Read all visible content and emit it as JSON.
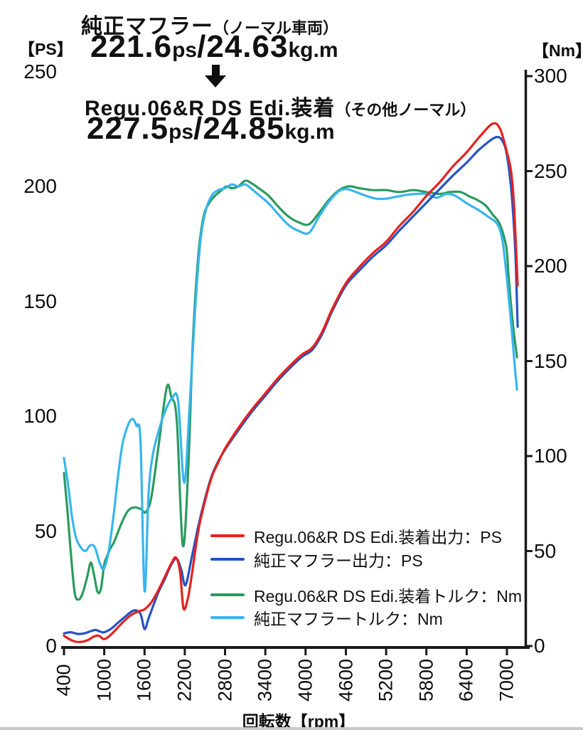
{
  "header": {
    "before": {
      "name": "純正マフラー",
      "qualifier": "（ノーマル車両）",
      "num1": "221.6",
      "unit1": "ps",
      "sep": "/",
      "num2": "24.63",
      "unit2": "kg.m"
    },
    "arrow_icon": "down-arrow",
    "after": {
      "name": "Regu.06&R DS Edi.装着",
      "qualifier": "（その他ノーマル）",
      "num1": "227.5",
      "unit1": "ps",
      "sep": "/",
      "num2": "24.85",
      "unit2": "kg.m"
    }
  },
  "chart_data": {
    "type": "line",
    "x_axis": {
      "label": "回転数【rpm】",
      "ticks": [
        400,
        1000,
        1600,
        2200,
        2800,
        3400,
        4000,
        4600,
        5200,
        5800,
        6400,
        7000
      ],
      "range": [
        400,
        7300
      ]
    },
    "y_left": {
      "label": "【PS】",
      "ticks": [
        0,
        50,
        100,
        150,
        200,
        250
      ],
      "range": [
        0,
        250
      ]
    },
    "y_right": {
      "label": "【Nm】",
      "ticks": [
        0,
        50,
        100,
        150,
        200,
        250,
        300
      ],
      "range": [
        0,
        300
      ]
    },
    "grid": false,
    "legend_position": "inside-bottom-right",
    "series": [
      {
        "name": "Regu.06&R DS Edi.装着出力：PS",
        "color": "#e8211d",
        "axis": "left",
        "peak": "227.5ps",
        "points": [
          [
            400,
            4.5
          ],
          [
            480,
            3
          ],
          [
            560,
            2
          ],
          [
            650,
            1.8
          ],
          [
            750,
            2.5
          ],
          [
            850,
            4.2
          ],
          [
            920,
            4.5
          ],
          [
            1000,
            3
          ],
          [
            1100,
            5
          ],
          [
            1200,
            8
          ],
          [
            1300,
            11
          ],
          [
            1400,
            13.5
          ],
          [
            1500,
            15
          ],
          [
            1600,
            16
          ],
          [
            1700,
            19
          ],
          [
            1800,
            24
          ],
          [
            1900,
            30
          ],
          [
            2000,
            36
          ],
          [
            2070,
            38.5
          ],
          [
            2130,
            32
          ],
          [
            2180,
            16.5
          ],
          [
            2240,
            20
          ],
          [
            2300,
            30
          ],
          [
            2400,
            50
          ],
          [
            2500,
            63
          ],
          [
            2600,
            73.5
          ],
          [
            2700,
            80
          ],
          [
            2800,
            86
          ],
          [
            3000,
            95
          ],
          [
            3200,
            103
          ],
          [
            3400,
            110
          ],
          [
            3600,
            117
          ],
          [
            3800,
            123
          ],
          [
            3950,
            127
          ],
          [
            4100,
            130
          ],
          [
            4250,
            137
          ],
          [
            4400,
            147
          ],
          [
            4600,
            158
          ],
          [
            4800,
            165
          ],
          [
            5000,
            171
          ],
          [
            5200,
            176
          ],
          [
            5400,
            183
          ],
          [
            5600,
            189
          ],
          [
            5800,
            196
          ],
          [
            6000,
            202
          ],
          [
            6200,
            209
          ],
          [
            6400,
            215
          ],
          [
            6600,
            222
          ],
          [
            6790,
            227.5
          ],
          [
            6900,
            225
          ],
          [
            7000,
            215
          ],
          [
            7060,
            207
          ],
          [
            7100,
            195
          ],
          [
            7130,
            177
          ],
          [
            7160,
            157
          ]
        ]
      },
      {
        "name": "純正マフラー出力：PS",
        "color": "#2553c4",
        "axis": "left",
        "peak": "221.6ps",
        "points": [
          [
            400,
            5.5
          ],
          [
            500,
            6
          ],
          [
            600,
            5.3
          ],
          [
            700,
            5.5
          ],
          [
            800,
            6.5
          ],
          [
            870,
            7
          ],
          [
            950,
            6.2
          ],
          [
            1000,
            6
          ],
          [
            1100,
            7.5
          ],
          [
            1200,
            10
          ],
          [
            1300,
            12.5
          ],
          [
            1440,
            15.5
          ],
          [
            1540,
            14
          ],
          [
            1600,
            7.4
          ],
          [
            1660,
            12
          ],
          [
            1730,
            17.5
          ],
          [
            1800,
            23
          ],
          [
            1900,
            29
          ],
          [
            2000,
            35.5
          ],
          [
            2080,
            38
          ],
          [
            2150,
            33
          ],
          [
            2210,
            26.5
          ],
          [
            2300,
            38
          ],
          [
            2400,
            52
          ],
          [
            2500,
            64
          ],
          [
            2600,
            74
          ],
          [
            2700,
            80.5
          ],
          [
            2800,
            85.5
          ],
          [
            3000,
            94
          ],
          [
            3200,
            102
          ],
          [
            3400,
            109
          ],
          [
            3600,
            116
          ],
          [
            3800,
            122
          ],
          [
            3950,
            126
          ],
          [
            4100,
            129
          ],
          [
            4250,
            136
          ],
          [
            4400,
            146
          ],
          [
            4600,
            157
          ],
          [
            4800,
            163.5
          ],
          [
            5000,
            169.5
          ],
          [
            5200,
            174.5
          ],
          [
            5400,
            181
          ],
          [
            5600,
            187
          ],
          [
            5800,
            193
          ],
          [
            6000,
            199
          ],
          [
            6200,
            205
          ],
          [
            6400,
            210.5
          ],
          [
            6600,
            216.5
          ],
          [
            6840,
            221.6
          ],
          [
            6950,
            219
          ],
          [
            7010,
            212
          ],
          [
            7060,
            200
          ],
          [
            7100,
            185
          ],
          [
            7130,
            168
          ],
          [
            7160,
            139
          ]
        ]
      },
      {
        "name": "Regu.06&R DS Edi.装着トルク：Nm",
        "color": "#2a9b5e",
        "axis": "right",
        "peak": "24.85kg.m",
        "points": [
          [
            400,
            91
          ],
          [
            450,
            72
          ],
          [
            500,
            50
          ],
          [
            560,
            28
          ],
          [
            620,
            24.5
          ],
          [
            680,
            28
          ],
          [
            750,
            37
          ],
          [
            800,
            44
          ],
          [
            850,
            37
          ],
          [
            900,
            28.5
          ],
          [
            950,
            30
          ],
          [
            1000,
            43
          ],
          [
            1050,
            48
          ],
          [
            1100,
            52
          ],
          [
            1150,
            55
          ],
          [
            1250,
            64
          ],
          [
            1350,
            71
          ],
          [
            1450,
            73
          ],
          [
            1550,
            72
          ],
          [
            1620,
            70.5
          ],
          [
            1700,
            78
          ],
          [
            1800,
            103
          ],
          [
            1930,
            136
          ],
          [
            2000,
            131
          ],
          [
            2080,
            119
          ],
          [
            2170,
            53
          ],
          [
            2250,
            92
          ],
          [
            2320,
            160
          ],
          [
            2400,
            205
          ],
          [
            2480,
            226
          ],
          [
            2560,
            233
          ],
          [
            2650,
            237
          ],
          [
            2750,
            240
          ],
          [
            2820,
            242
          ],
          [
            2900,
            241
          ],
          [
            3000,
            242
          ],
          [
            3100,
            245
          ],
          [
            3200,
            243.5
          ],
          [
            3300,
            241
          ],
          [
            3450,
            237
          ],
          [
            3600,
            231
          ],
          [
            3750,
            226
          ],
          [
            3900,
            223
          ],
          [
            4050,
            222
          ],
          [
            4200,
            228
          ],
          [
            4350,
            235
          ],
          [
            4500,
            240
          ],
          [
            4650,
            242
          ],
          [
            4800,
            241
          ],
          [
            5000,
            240
          ],
          [
            5200,
            240
          ],
          [
            5400,
            239
          ],
          [
            5600,
            240
          ],
          [
            5800,
            239
          ],
          [
            6000,
            238
          ],
          [
            6150,
            239
          ],
          [
            6310,
            239
          ],
          [
            6450,
            236.5
          ],
          [
            6550,
            235
          ],
          [
            6680,
            232
          ],
          [
            6790,
            227
          ],
          [
            6895,
            222
          ],
          [
            6990,
            210
          ],
          [
            7020,
            197
          ],
          [
            7060,
            180
          ],
          [
            7100,
            166
          ],
          [
            7150,
            152
          ]
        ]
      },
      {
        "name": "純正マフラートルク：Nm",
        "color": "#38b5ee",
        "axis": "right",
        "peak": "24.63kg.m",
        "points": [
          [
            400,
            99
          ],
          [
            460,
            85
          ],
          [
            520,
            68
          ],
          [
            580,
            57
          ],
          [
            650,
            52
          ],
          [
            720,
            50
          ],
          [
            790,
            53
          ],
          [
            860,
            52
          ],
          [
            930,
            44
          ],
          [
            990,
            40.5
          ],
          [
            1050,
            47
          ],
          [
            1100,
            58
          ],
          [
            1150,
            72
          ],
          [
            1200,
            88
          ],
          [
            1270,
            106
          ],
          [
            1350,
            116
          ],
          [
            1420,
            119.5
          ],
          [
            1480,
            116
          ],
          [
            1540,
            108
          ],
          [
            1600,
            29
          ],
          [
            1660,
            80
          ],
          [
            1720,
            100
          ],
          [
            1800,
            112
          ],
          [
            1900,
            123
          ],
          [
            2010,
            130.5
          ],
          [
            2100,
            129
          ],
          [
            2190,
            86
          ],
          [
            2270,
            125
          ],
          [
            2350,
            175
          ],
          [
            2430,
            212
          ],
          [
            2510,
            229
          ],
          [
            2600,
            237
          ],
          [
            2700,
            240
          ],
          [
            2800,
            241
          ],
          [
            2900,
            243
          ],
          [
            3000,
            242
          ],
          [
            3100,
            243
          ],
          [
            3200,
            240.5
          ],
          [
            3300,
            237.5
          ],
          [
            3450,
            233
          ],
          [
            3600,
            227
          ],
          [
            3750,
            221.5
          ],
          [
            3900,
            218.5
          ],
          [
            4050,
            217.5
          ],
          [
            4200,
            226
          ],
          [
            4350,
            234
          ],
          [
            4500,
            239.5
          ],
          [
            4620,
            240.5
          ],
          [
            4750,
            239
          ],
          [
            4900,
            237
          ],
          [
            5050,
            235.5
          ],
          [
            5200,
            235.5
          ],
          [
            5350,
            236.5
          ],
          [
            5500,
            237.5
          ],
          [
            5650,
            238
          ],
          [
            5800,
            238
          ],
          [
            5950,
            236
          ],
          [
            6100,
            238
          ],
          [
            6230,
            237
          ],
          [
            6405,
            233
          ],
          [
            6575,
            229.5
          ],
          [
            6720,
            226
          ],
          [
            6860,
            222
          ],
          [
            6930,
            214
          ],
          [
            6980,
            200
          ],
          [
            7020,
            186
          ],
          [
            7070,
            167
          ],
          [
            7110,
            150
          ],
          [
            7150,
            135
          ]
        ]
      }
    ]
  },
  "colors": {
    "axis": "#1a1a1a",
    "text": "#0d0d0d",
    "bottom_bar": "#c9c9c9"
  }
}
